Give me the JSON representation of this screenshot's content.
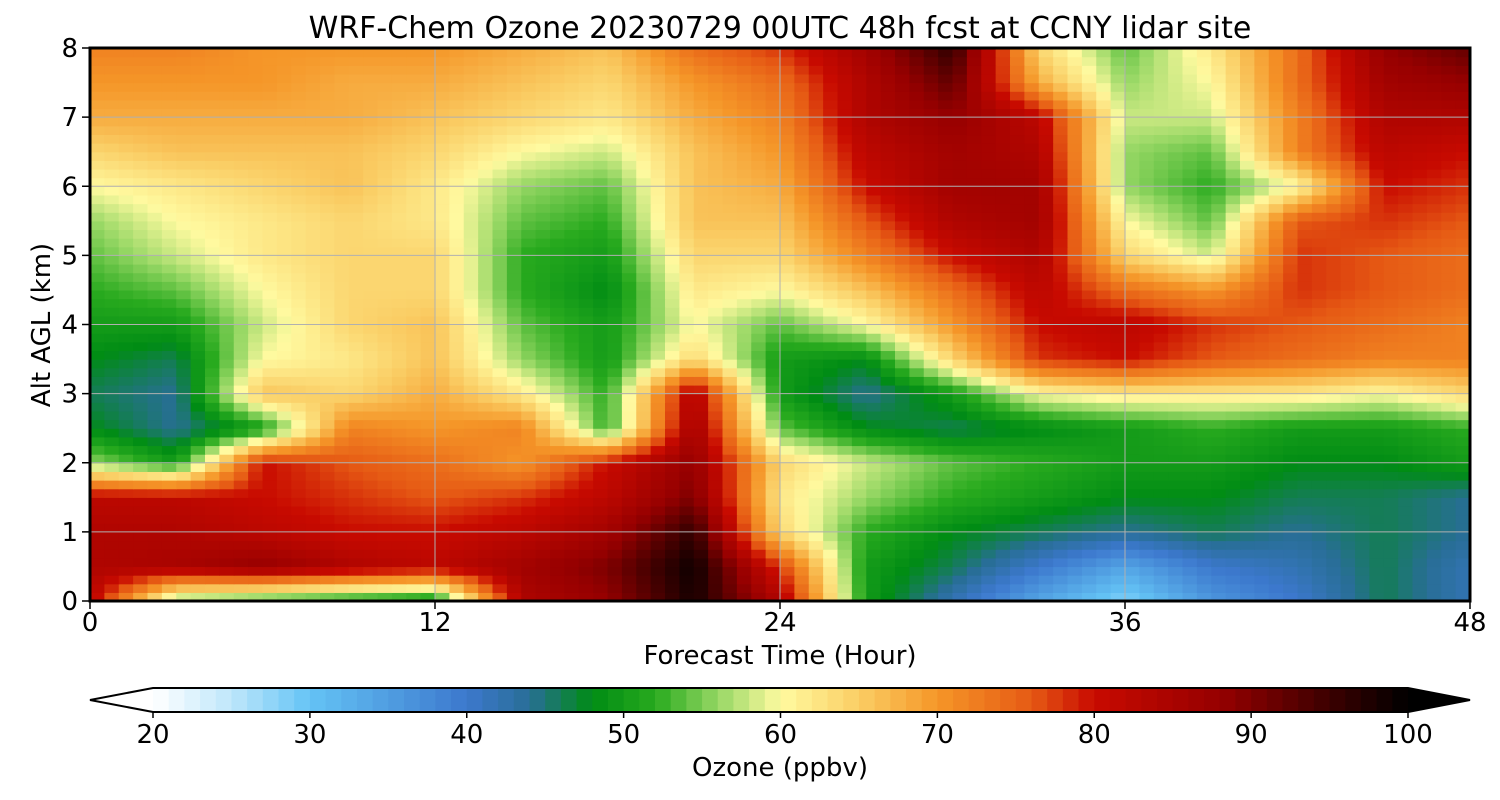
{
  "chart_data": {
    "type": "heatmap",
    "title": "WRF-Chem Ozone  20230729 00UTC 48h fcst at CCNY lidar site",
    "xlabel": "Forecast Time (Hour)",
    "ylabel": "Alt AGL (km)",
    "xlim": [
      0,
      48
    ],
    "ylim": [
      0,
      8
    ],
    "x_ticks": [
      "0",
      "12",
      "24",
      "36",
      "48"
    ],
    "y_ticks": [
      "0",
      "1",
      "2",
      "3",
      "4",
      "5",
      "6",
      "7",
      "8"
    ],
    "grid": true,
    "colorbar": {
      "label": "Ozone  (ppbv)",
      "min": 20,
      "max": 100,
      "extend": "both",
      "ticks": [
        "20",
        "30",
        "40",
        "50",
        "60",
        "70",
        "80",
        "90",
        "100"
      ]
    },
    "x": [
      0,
      3,
      6,
      9,
      12,
      15,
      18,
      21,
      24,
      27,
      30,
      33,
      36,
      39,
      42,
      45,
      48
    ],
    "y": [
      0,
      0.5,
      1,
      1.5,
      2,
      2.5,
      3,
      3.5,
      4,
      4.5,
      5,
      5.5,
      6,
      6.5,
      7,
      7.5,
      8
    ],
    "z": [
      [
        82,
        55,
        52,
        50,
        48,
        84,
        88,
        98,
        84,
        50,
        42,
        34,
        28,
        36,
        40,
        46,
        42
      ],
      [
        84,
        85,
        88,
        84,
        82,
        86,
        90,
        99,
        78,
        50,
        46,
        40,
        34,
        40,
        42,
        46,
        42
      ],
      [
        84,
        84,
        82,
        80,
        80,
        82,
        86,
        96,
        64,
        52,
        48,
        46,
        44,
        46,
        44,
        46,
        44
      ],
      [
        82,
        82,
        80,
        78,
        76,
        78,
        82,
        90,
        62,
        56,
        52,
        50,
        48,
        48,
        46,
        46,
        44
      ],
      [
        56,
        50,
        80,
        76,
        74,
        70,
        80,
        88,
        64,
        58,
        54,
        52,
        50,
        50,
        48,
        48,
        50
      ],
      [
        48,
        44,
        50,
        72,
        70,
        72,
        52,
        86,
        54,
        48,
        46,
        48,
        50,
        52,
        50,
        50,
        52
      ],
      [
        46,
        44,
        66,
        64,
        68,
        62,
        52,
        84,
        50,
        44,
        50,
        60,
        62,
        62,
        62,
        60,
        64
      ],
      [
        48,
        46,
        60,
        62,
        66,
        56,
        50,
        64,
        50,
        48,
        64,
        78,
        80,
        76,
        74,
        72,
        72
      ],
      [
        50,
        50,
        58,
        64,
        66,
        54,
        50,
        60,
        54,
        60,
        70,
        80,
        82,
        78,
        76,
        74,
        72
      ],
      [
        52,
        54,
        60,
        64,
        64,
        52,
        48,
        62,
        60,
        66,
        74,
        82,
        74,
        70,
        78,
        76,
        74
      ],
      [
        54,
        58,
        62,
        64,
        64,
        52,
        50,
        64,
        64,
        72,
        80,
        84,
        64,
        58,
        78,
        76,
        74
      ],
      [
        56,
        60,
        62,
        64,
        62,
        54,
        52,
        66,
        66,
        76,
        84,
        86,
        60,
        54,
        76,
        78,
        76
      ],
      [
        60,
        62,
        64,
        66,
        62,
        56,
        54,
        66,
        68,
        80,
        86,
        86,
        56,
        52,
        60,
        80,
        78
      ],
      [
        64,
        66,
        66,
        66,
        64,
        60,
        58,
        66,
        70,
        82,
        86,
        84,
        56,
        54,
        72,
        82,
        80
      ],
      [
        68,
        68,
        68,
        68,
        66,
        64,
        62,
        68,
        72,
        84,
        88,
        82,
        58,
        58,
        72,
        84,
        84
      ],
      [
        70,
        70,
        70,
        68,
        68,
        66,
        64,
        70,
        74,
        84,
        92,
        68,
        56,
        60,
        74,
        86,
        88
      ],
      [
        72,
        72,
        70,
        70,
        70,
        68,
        66,
        74,
        78,
        86,
        96,
        64,
        54,
        62,
        74,
        88,
        92
      ]
    ]
  }
}
